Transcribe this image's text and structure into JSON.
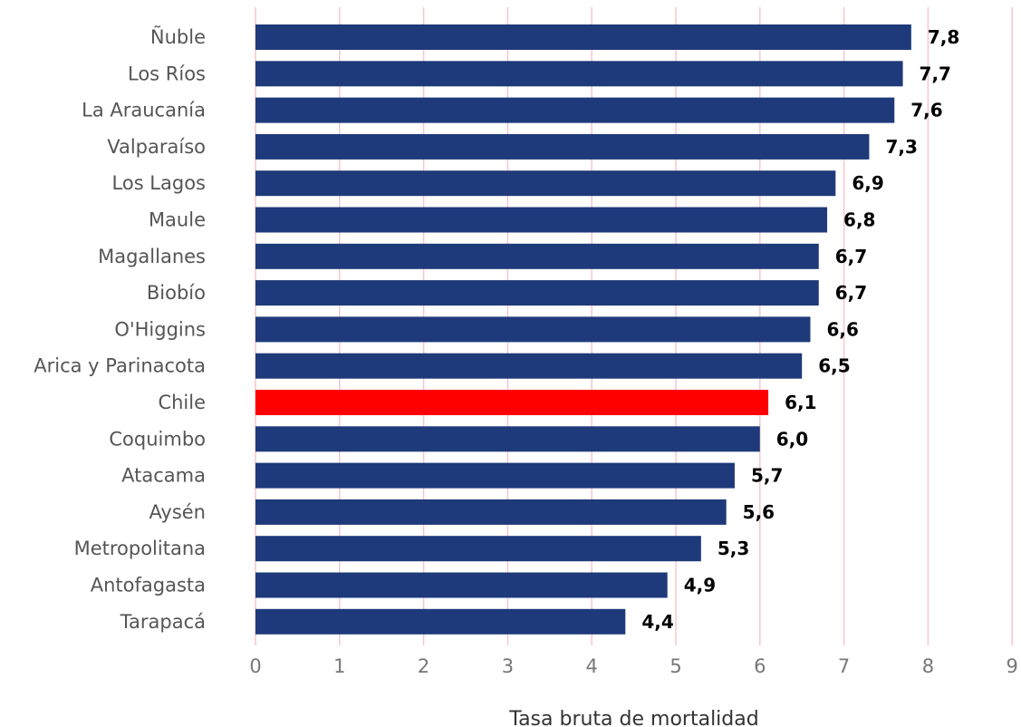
{
  "chart_data": {
    "type": "bar",
    "orientation": "horizontal",
    "categories": [
      "Ñuble",
      "Los Ríos",
      "La Araucanía",
      "Valparaíso",
      "Los Lagos",
      "Maule",
      "Magallanes",
      "Biobío",
      "O'Higgins",
      "Arica y Parinacota",
      "Chile",
      "Coquimbo",
      "Atacama",
      "Aysén",
      "Metropolitana",
      "Antofagasta",
      "Tarapacá"
    ],
    "values": [
      7.8,
      7.7,
      7.6,
      7.3,
      6.9,
      6.8,
      6.7,
      6.7,
      6.6,
      6.5,
      6.1,
      6.0,
      5.7,
      5.6,
      5.3,
      4.9,
      4.4
    ],
    "value_labels": [
      "7,8",
      "7,7",
      "7,6",
      "7,3",
      "6,9",
      "6,8",
      "6,7",
      "6,7",
      "6,6",
      "6,5",
      "6,1",
      "6,0",
      "5,7",
      "5,6",
      "5,3",
      "4,9",
      "4,4"
    ],
    "highlight_category": "Chile",
    "xlabel": "Tasa bruta de mortalidad",
    "ylabel": "",
    "xlim": [
      0,
      9
    ],
    "xticks": [
      "0",
      "1",
      "2",
      "3",
      "4",
      "5",
      "6",
      "7",
      "8",
      "9"
    ],
    "grid": "vertical",
    "legend": "none",
    "colors": {
      "bar": "#1f3a7a",
      "highlight": "#ff0000",
      "grid": "#f6c6cc"
    }
  }
}
